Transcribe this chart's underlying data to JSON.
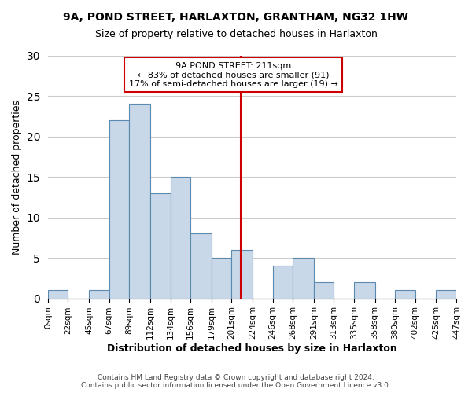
{
  "title": "9A, POND STREET, HARLAXTON, GRANTHAM, NG32 1HW",
  "subtitle": "Size of property relative to detached houses in Harlaxton",
  "xlabel": "Distribution of detached houses by size in Harlaxton",
  "ylabel": "Number of detached properties",
  "bar_color": "#c8d8e8",
  "bar_edge_color": "#5a8ab0",
  "bin_edges": [
    0,
    22,
    45,
    67,
    89,
    112,
    134,
    156,
    179,
    201,
    224,
    246,
    268,
    291,
    313,
    335,
    358,
    380,
    402,
    425,
    447
  ],
  "bin_labels": [
    "0sqm",
    "22sqm",
    "45sqm",
    "67sqm",
    "89sqm",
    "112sqm",
    "134sqm",
    "156sqm",
    "179sqm",
    "201sqm",
    "224sqm",
    "246sqm",
    "268sqm",
    "291sqm",
    "313sqm",
    "335sqm",
    "358sqm",
    "380sqm",
    "402sqm",
    "425sqm",
    "447sqm"
  ],
  "counts": [
    1,
    0,
    1,
    22,
    24,
    13,
    15,
    8,
    5,
    6,
    0,
    4,
    5,
    2,
    0,
    2,
    0,
    1,
    0,
    1
  ],
  "ylim": [
    0,
    30
  ],
  "yticks": [
    0,
    5,
    10,
    15,
    20,
    25,
    30
  ],
  "property_size": 211,
  "vline_color": "#cc0000",
  "annotation_title": "9A POND STREET: 211sqm",
  "annotation_line1": "← 83% of detached houses are smaller (91)",
  "annotation_line2": "17% of semi-detached houses are larger (19) →",
  "annotation_box_color": "#ffffff",
  "annotation_box_edge": "#cc0000",
  "footer1": "Contains HM Land Registry data © Crown copyright and database right 2024.",
  "footer2": "Contains public sector information licensed under the Open Government Licence v3.0.",
  "background_color": "#ffffff",
  "grid_color": "#cccccc"
}
